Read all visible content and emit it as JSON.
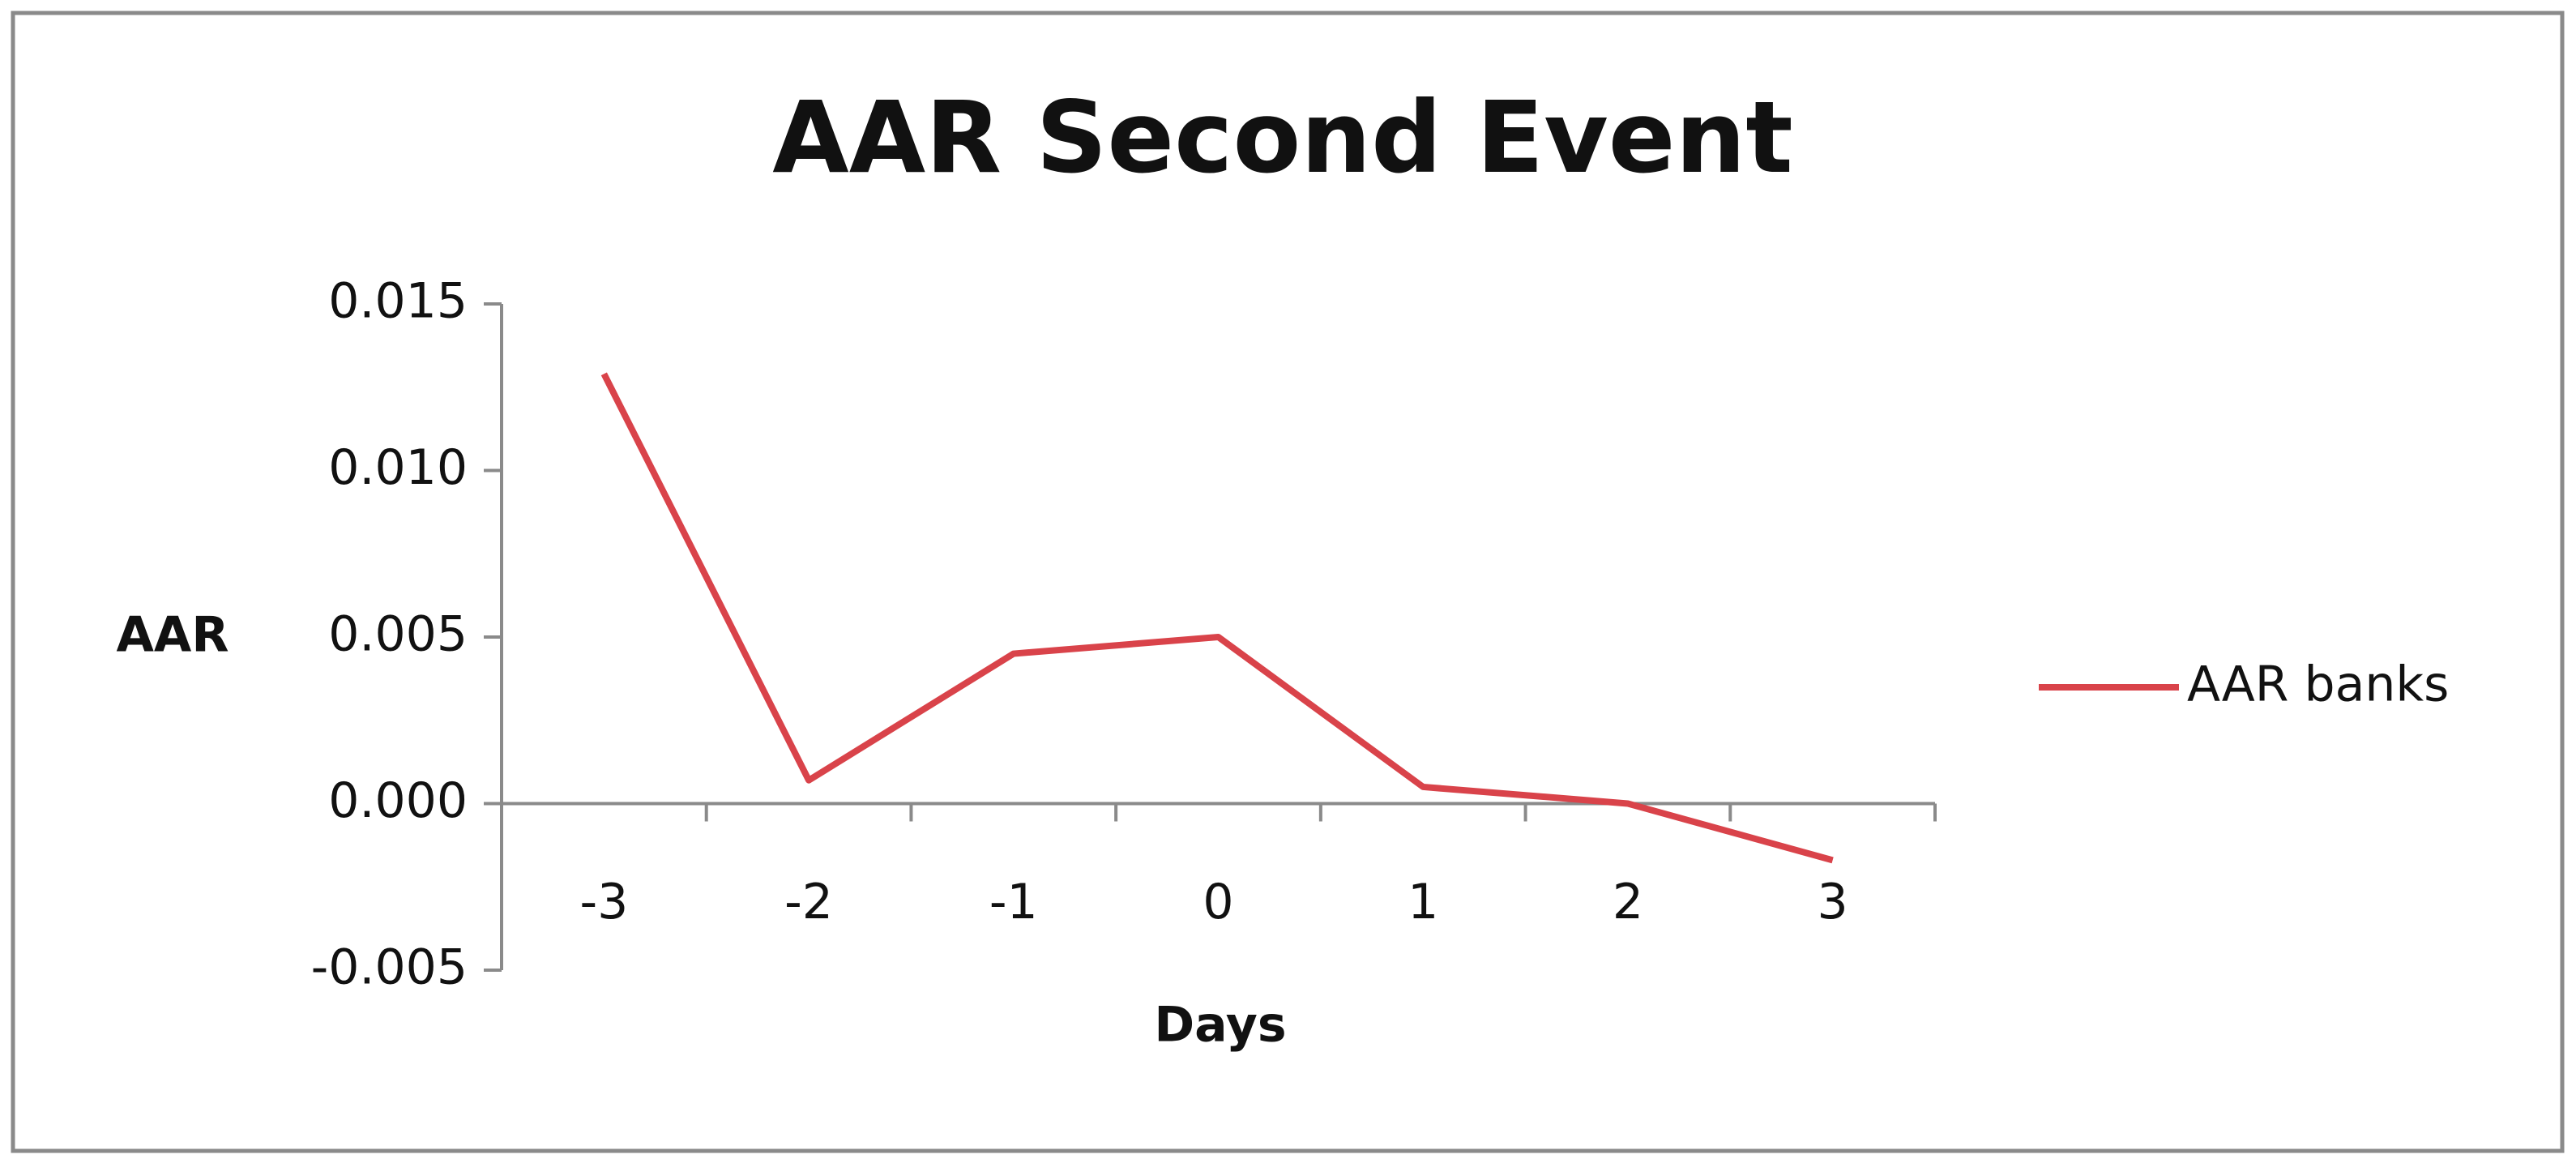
{
  "chart_data": {
    "type": "line",
    "title": "AAR Second Event",
    "x_label": "Days",
    "y_label": "AAR",
    "categories": [
      "-3",
      "-2",
      "-1",
      "0",
      "1",
      "2",
      "3"
    ],
    "series": [
      {
        "name": "AAR banks",
        "color": "#d9434a",
        "values": [
          0.0129,
          0.0007,
          0.0045,
          0.005,
          0.0005,
          0.0,
          -0.0017
        ]
      }
    ],
    "ylim": [
      -0.005,
      0.015
    ],
    "yticks": [
      {
        "value": 0.015,
        "label": "0.015"
      },
      {
        "value": 0.01,
        "label": "0.010"
      },
      {
        "value": 0.005,
        "label": "0.005"
      },
      {
        "value": 0,
        "label": "0.000"
      },
      {
        "value": -0.005,
        "label": "-0.005"
      }
    ],
    "grid": false,
    "legend": "right"
  }
}
